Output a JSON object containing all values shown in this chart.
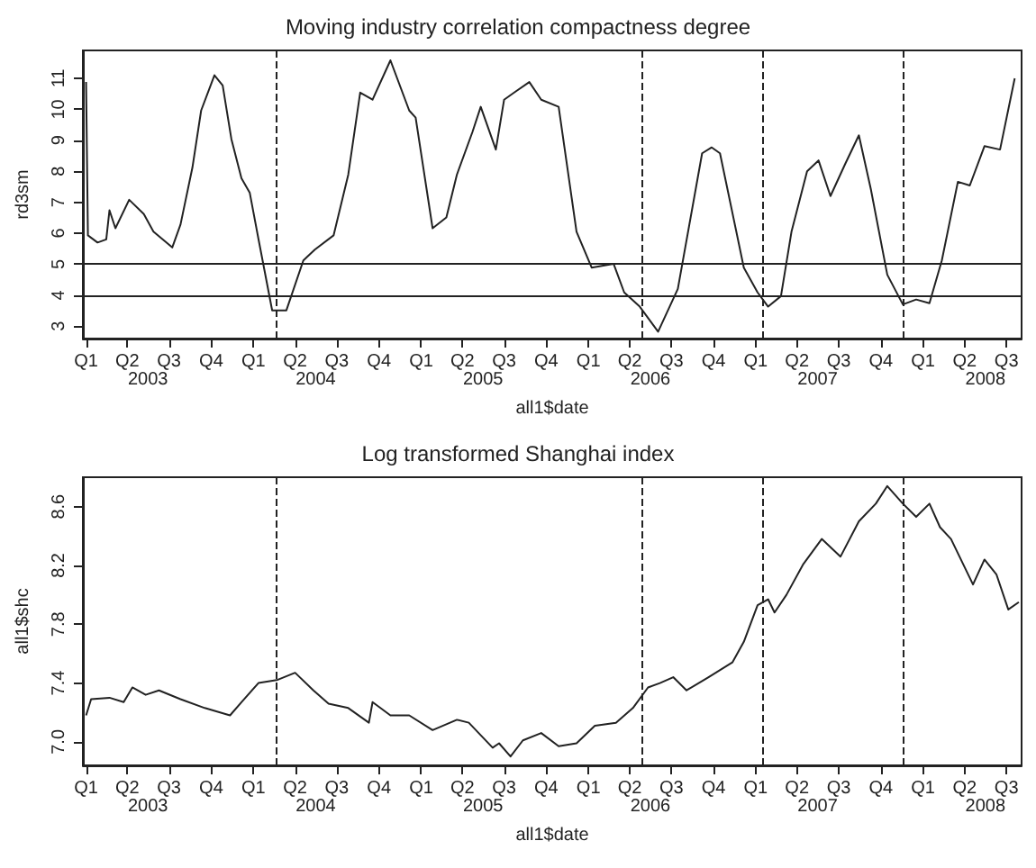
{
  "chart_data": [
    {
      "type": "line",
      "title": "Moving industry correlation compactness degree",
      "xlabel": "all1$date",
      "ylabel": "rd3sm",
      "line_style": "solid",
      "marker": "none",
      "grid": false,
      "xlim": [
        "2002-12-25",
        "2008-08-03"
      ],
      "xticks": [
        {
          "value": "2003-01-01",
          "label": "Q1"
        },
        {
          "value": "2003-04-01",
          "label": "Q2"
        },
        {
          "value": "2003-07-01",
          "label": "Q3"
        },
        {
          "value": "2003-10-01",
          "label": "Q4"
        },
        {
          "value": "2004-01-01",
          "label": "Q1"
        },
        {
          "value": "2004-04-01",
          "label": "Q2"
        },
        {
          "value": "2004-07-01",
          "label": "Q3"
        },
        {
          "value": "2004-10-01",
          "label": "Q4"
        },
        {
          "value": "2005-01-01",
          "label": "Q1"
        },
        {
          "value": "2005-04-01",
          "label": "Q2"
        },
        {
          "value": "2005-07-01",
          "label": "Q3"
        },
        {
          "value": "2005-10-01",
          "label": "Q4"
        },
        {
          "value": "2006-01-01",
          "label": "Q1"
        },
        {
          "value": "2006-04-01",
          "label": "Q2"
        },
        {
          "value": "2006-07-01",
          "label": "Q3"
        },
        {
          "value": "2006-10-01",
          "label": "Q4"
        },
        {
          "value": "2007-01-01",
          "label": "Q1"
        },
        {
          "value": "2007-04-01",
          "label": "Q2"
        },
        {
          "value": "2007-07-01",
          "label": "Q3"
        },
        {
          "value": "2007-10-01",
          "label": "Q4"
        },
        {
          "value": "2008-01-01",
          "label": "Q1"
        },
        {
          "value": "2008-04-01",
          "label": "Q2"
        },
        {
          "value": "2008-07-01",
          "label": "Q3"
        }
      ],
      "x2lim": [
        "2002-12-25",
        "2008-08-03"
      ],
      "x2ticks": [
        {
          "value": "2003-05-16",
          "label": "2003"
        },
        {
          "value": "2004-05-16",
          "label": "2004"
        },
        {
          "value": "2005-05-16",
          "label": "2005"
        },
        {
          "value": "2006-05-16",
          "label": "2006"
        },
        {
          "value": "2007-05-16",
          "label": "2007"
        },
        {
          "value": "2008-05-16",
          "label": "2008"
        }
      ],
      "ylim": [
        2.6,
        11.9
      ],
      "yticks": [
        3,
        4,
        5,
        6,
        7,
        8,
        9,
        10,
        11
      ],
      "x": [
        "2003-01-01",
        "2003-01-05",
        "2003-01-26",
        "2003-02-14",
        "2003-02-21",
        "2003-03-06",
        "2003-04-05",
        "2003-05-07",
        "2003-05-28",
        "2003-07-08",
        "2003-07-26",
        "2003-08-21",
        "2003-09-09",
        "2003-10-08",
        "2003-10-26",
        "2003-11-14",
        "2003-12-06",
        "2003-12-24",
        "2004-01-12",
        "2004-02-11",
        "2004-03-13",
        "2004-04-19",
        "2004-05-14",
        "2004-06-24",
        "2004-07-26",
        "2004-08-21",
        "2004-09-17",
        "2004-10-26",
        "2004-12-06",
        "2004-12-20",
        "2005-01-26",
        "2005-02-25",
        "2005-03-20",
        "2005-04-23",
        "2005-05-11",
        "2005-06-13",
        "2005-07-01",
        "2005-07-23",
        "2005-08-25",
        "2005-09-20",
        "2005-10-28",
        "2005-12-06",
        "2006-01-08",
        "2006-02-25",
        "2006-03-20",
        "2006-04-23",
        "2006-06-02",
        "2006-07-15",
        "2006-09-06",
        "2006-09-27",
        "2006-10-15",
        "2006-12-06",
        "2007-01-05",
        "2007-01-28",
        "2007-02-25",
        "2007-03-20",
        "2007-04-23",
        "2007-05-18",
        "2007-06-13",
        "2007-07-15",
        "2007-08-14",
        "2007-09-09",
        "2007-10-15",
        "2007-11-18",
        "2007-12-17",
        "2008-01-15",
        "2008-02-11",
        "2008-03-17",
        "2008-04-12",
        "2008-05-14",
        "2008-06-17",
        "2008-07-19"
      ],
      "series": [
        {
          "color": "#222222",
          "values": [
            10.88,
            5.93,
            5.7,
            5.8,
            6.74,
            6.16,
            7.08,
            6.62,
            6.05,
            5.54,
            6.28,
            8.12,
            9.96,
            11.1,
            10.77,
            9.04,
            7.77,
            7.31,
            5.82,
            3.51,
            3.51,
            5.12,
            5.47,
            5.93,
            7.89,
            10.54,
            10.31,
            11.58,
            9.96,
            9.73,
            6.16,
            6.51,
            7.89,
            9.27,
            10.08,
            8.7,
            10.31,
            10.54,
            10.88,
            10.31,
            10.08,
            6.05,
            4.89,
            5.01,
            4.09,
            3.63,
            2.82,
            4.2,
            8.58,
            8.77,
            8.58,
            4.89,
            4.09,
            3.63,
            3.97,
            6.05,
            8.0,
            8.35,
            7.2,
            8.23,
            9.16,
            7.43,
            4.66,
            3.7,
            3.86,
            3.74,
            5.12,
            7.66,
            7.54,
            8.81,
            8.7,
            11.0
          ]
        }
      ],
      "ref_lines": [
        {
          "axis": "y",
          "value": 5,
          "color": "#222222",
          "line_style": "solid"
        },
        {
          "axis": "y",
          "value": 4,
          "color": "#222222",
          "line_style": "solid"
        },
        {
          "axis": "x",
          "value": "2004-02-21",
          "color": "#222222",
          "line_style": "dashed"
        },
        {
          "axis": "x",
          "value": "2006-04-28",
          "color": "#222222",
          "line_style": "dashed"
        },
        {
          "axis": "x",
          "value": "2007-01-15",
          "color": "#222222",
          "line_style": "dashed"
        },
        {
          "axis": "x",
          "value": "2007-11-18",
          "color": "#222222",
          "line_style": "dashed"
        }
      ]
    },
    {
      "type": "line",
      "title": "Log transformed Shanghai index",
      "xlabel": "all1$date",
      "ylabel": "all1$shc",
      "line_style": "solid",
      "marker": "none",
      "grid": false,
      "xlim": [
        "2002-12-25",
        "2008-08-03"
      ],
      "xticks": [
        {
          "value": "2003-01-01",
          "label": "Q1"
        },
        {
          "value": "2003-04-01",
          "label": "Q2"
        },
        {
          "value": "2003-07-01",
          "label": "Q3"
        },
        {
          "value": "2003-10-01",
          "label": "Q4"
        },
        {
          "value": "2004-01-01",
          "label": "Q1"
        },
        {
          "value": "2004-04-01",
          "label": "Q2"
        },
        {
          "value": "2004-07-01",
          "label": "Q3"
        },
        {
          "value": "2004-10-01",
          "label": "Q4"
        },
        {
          "value": "2005-01-01",
          "label": "Q1"
        },
        {
          "value": "2005-04-01",
          "label": "Q2"
        },
        {
          "value": "2005-07-01",
          "label": "Q3"
        },
        {
          "value": "2005-10-01",
          "label": "Q4"
        },
        {
          "value": "2006-01-01",
          "label": "Q1"
        },
        {
          "value": "2006-04-01",
          "label": "Q2"
        },
        {
          "value": "2006-07-01",
          "label": "Q3"
        },
        {
          "value": "2006-10-01",
          "label": "Q4"
        },
        {
          "value": "2007-01-01",
          "label": "Q1"
        },
        {
          "value": "2007-04-01",
          "label": "Q2"
        },
        {
          "value": "2007-07-01",
          "label": "Q3"
        },
        {
          "value": "2007-10-01",
          "label": "Q4"
        },
        {
          "value": "2008-01-01",
          "label": "Q1"
        },
        {
          "value": "2008-04-01",
          "label": "Q2"
        },
        {
          "value": "2008-07-01",
          "label": "Q3"
        }
      ],
      "x2lim": [
        "2002-12-25",
        "2008-08-03"
      ],
      "x2ticks": [
        {
          "value": "2003-05-16",
          "label": "2003"
        },
        {
          "value": "2004-05-16",
          "label": "2004"
        },
        {
          "value": "2005-05-16",
          "label": "2005"
        },
        {
          "value": "2006-05-16",
          "label": "2006"
        },
        {
          "value": "2007-05-16",
          "label": "2007"
        },
        {
          "value": "2008-05-16",
          "label": "2008"
        }
      ],
      "ylim": [
        6.84,
        8.8
      ],
      "yticks": [
        {
          "value": 7,
          "label": "7.0"
        },
        {
          "value": 7.4,
          "label": "7.4"
        },
        {
          "value": 7.8,
          "label": "7.8"
        },
        {
          "value": 8.2,
          "label": "8.2"
        },
        {
          "value": 8.6,
          "label": "8.6"
        }
      ],
      "x": [
        "2003-01-01",
        "2003-01-12",
        "2003-02-21",
        "2003-03-24",
        "2003-04-12",
        "2003-05-11",
        "2003-06-09",
        "2003-07-26",
        "2003-09-17",
        "2003-11-11",
        "2003-12-06",
        "2004-01-12",
        "2004-02-21",
        "2004-04-01",
        "2004-05-11",
        "2004-06-13",
        "2004-07-26",
        "2004-09-09",
        "2004-09-17",
        "2004-10-26",
        "2004-12-06",
        "2005-01-26",
        "2005-03-20",
        "2005-04-15",
        "2005-06-06",
        "2005-06-20",
        "2005-07-15",
        "2005-08-11",
        "2005-09-20",
        "2005-10-28",
        "2005-12-06",
        "2006-01-15",
        "2006-03-02",
        "2006-04-08",
        "2006-05-11",
        "2006-06-06",
        "2006-07-05",
        "2006-08-03",
        "2006-09-20",
        "2006-11-11",
        "2006-12-06",
        "2007-01-05",
        "2007-01-28",
        "2007-02-11",
        "2007-03-09",
        "2007-04-15",
        "2007-05-25",
        "2007-07-05",
        "2007-08-14",
        "2007-09-20",
        "2007-10-15",
        "2007-11-18",
        "2007-12-17",
        "2008-01-15",
        "2008-02-07",
        "2008-03-02",
        "2008-04-19",
        "2008-05-14",
        "2008-06-09",
        "2008-07-05",
        "2008-07-28"
      ],
      "series": [
        {
          "color": "#222222",
          "values": [
            7.18,
            7.29,
            7.3,
            7.27,
            7.37,
            7.32,
            7.35,
            7.29,
            7.23,
            7.18,
            7.27,
            7.4,
            7.42,
            7.47,
            7.35,
            7.26,
            7.23,
            7.13,
            7.27,
            7.18,
            7.18,
            7.08,
            7.15,
            7.13,
            6.96,
            6.99,
            6.9,
            7.01,
            7.06,
            6.97,
            6.99,
            7.11,
            7.13,
            7.23,
            7.37,
            7.4,
            7.44,
            7.35,
            7.44,
            7.54,
            7.68,
            7.93,
            7.97,
            7.88,
            8.0,
            8.21,
            8.38,
            8.26,
            8.5,
            8.62,
            8.74,
            8.62,
            8.53,
            8.62,
            8.46,
            8.38,
            8.07,
            8.24,
            8.14,
            7.9,
            7.95
          ]
        }
      ],
      "ref_lines": [
        {
          "axis": "x",
          "value": "2004-02-21",
          "color": "#222222",
          "line_style": "dashed"
        },
        {
          "axis": "x",
          "value": "2006-04-28",
          "color": "#222222",
          "line_style": "dashed"
        },
        {
          "axis": "x",
          "value": "2007-01-15",
          "color": "#222222",
          "line_style": "dashed"
        },
        {
          "axis": "x",
          "value": "2007-11-18",
          "color": "#222222",
          "line_style": "dashed"
        }
      ]
    }
  ]
}
